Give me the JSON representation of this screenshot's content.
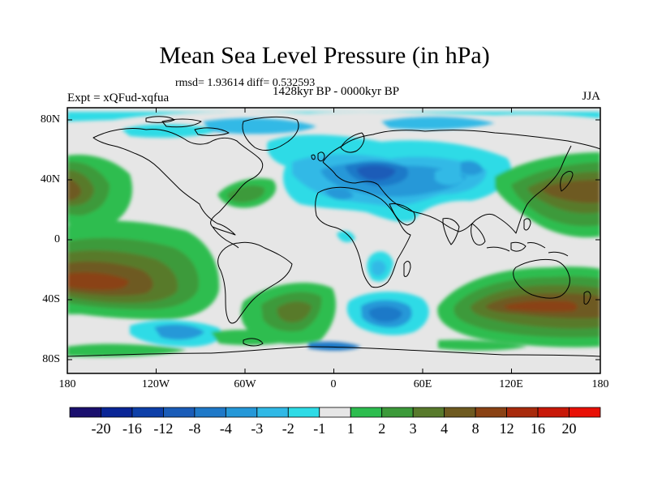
{
  "title": "Mean Sea Level Pressure (in hPa)",
  "stats": "rmsd= 1.93614 diff= 0.532593",
  "period": "1428kyr BP - 0000kyr BP",
  "experiment": "Expt = xQFud-xqfua",
  "season": "JJA",
  "lat_labels": [
    "80N",
    "40N",
    "0",
    "40S",
    "80S"
  ],
  "lon_labels": [
    "180",
    "120W",
    "60W",
    "0",
    "60E",
    "120E",
    "180"
  ],
  "colorbar": {
    "labels": [
      "-20",
      "-16",
      "-12",
      "-8",
      "-4",
      "-3",
      "-2",
      "-1",
      "1",
      "2",
      "3",
      "4",
      "8",
      "12",
      "16",
      "20"
    ],
    "colors": [
      "#1a0f6e",
      "#0a2596",
      "#0d3fa8",
      "#1a5cb8",
      "#1f79c8",
      "#2598d8",
      "#30b9e6",
      "#2edbe6",
      "#e6e6e6",
      "#2dbd4f",
      "#3c9a3a",
      "#587a2c",
      "#6e5a20",
      "#8a4214",
      "#a82a0c",
      "#c81808",
      "#e81006"
    ]
  },
  "colors": {
    "background_field": "#e6e6e6",
    "coastline": "#000000"
  }
}
